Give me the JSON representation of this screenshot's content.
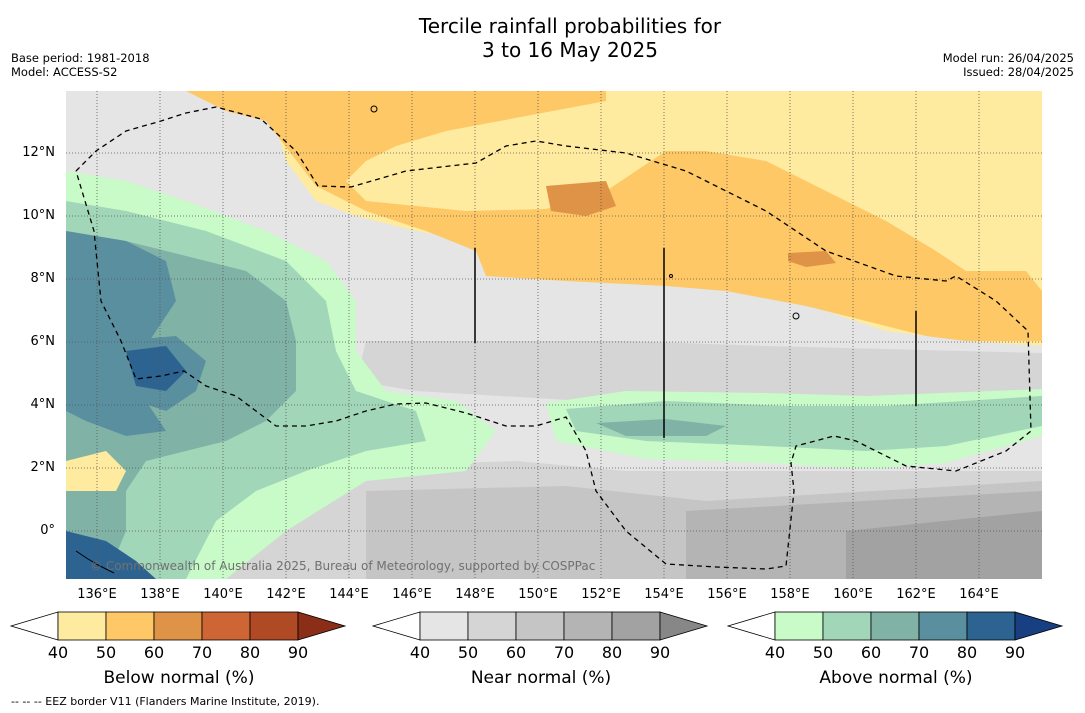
{
  "title_line1": "Tercile rainfall probabilities for",
  "title_line2": "3 to 16 May 2025",
  "base_period": "Base period: 1981-2018",
  "model": "Model: ACCESS-S2",
  "model_run": "Model run: 26/04/2025",
  "issued": "Issued: 28/04/2025",
  "copyright": "© Commonwealth of Australia 2025, Bureau of Meteorology, supported by COSPPac",
  "footer": "--  --  -- EEZ border V11 (Flanders Marine Institute, 2019).",
  "lat_labels": [
    "12°N",
    "10°N",
    "8°N",
    "6°N",
    "4°N",
    "2°N",
    "0°"
  ],
  "lon_labels": [
    "136°E",
    "138°E",
    "140°E",
    "142°E",
    "144°E",
    "146°E",
    "148°E",
    "150°E",
    "152°E",
    "154°E",
    "156°E",
    "158°E",
    "160°E",
    "162°E",
    "164°E"
  ],
  "legend": {
    "below": {
      "title": "Below normal (%)",
      "ticks": [
        "40",
        "50",
        "60",
        "70",
        "80",
        "90"
      ],
      "colors": [
        "#ffffff",
        "#feeba0",
        "#fdc865",
        "#df9347",
        "#cd6634",
        "#b04a25",
        "#8a2e18"
      ]
    },
    "near": {
      "title": "Near normal (%)",
      "ticks": [
        "40",
        "50",
        "60",
        "70",
        "80",
        "90"
      ],
      "colors": [
        "#ffffff",
        "#e5e5e5",
        "#d5d5d5",
        "#c5c5c5",
        "#b4b4b4",
        "#a2a2a2",
        "#878787"
      ]
    },
    "above": {
      "title": "Above normal (%)",
      "ticks": [
        "40",
        "50",
        "60",
        "70",
        "80",
        "90"
      ],
      "colors": [
        "#ffffff",
        "#c8fbc8",
        "#a2d6b8",
        "#80b3a6",
        "#5a8fa0",
        "#2d6391",
        "#173f82"
      ]
    }
  }
}
